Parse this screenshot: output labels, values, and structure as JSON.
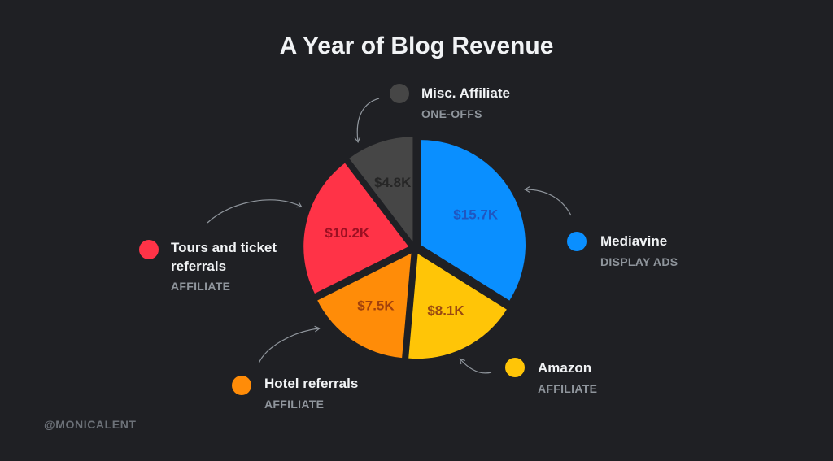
{
  "title": "A Year of Blog Revenue",
  "handle": "@MONICALENT",
  "chart_data": {
    "type": "pie",
    "title": "A Year of Blog Revenue",
    "slices": [
      {
        "name": "Mediavine",
        "category": "DISPLAY ADS",
        "value": 15.7,
        "label": "$15.7K",
        "color": "#0a8fff",
        "label_color": "#1f57c2"
      },
      {
        "name": "Amazon",
        "category": "AFFILIATE",
        "value": 8.1,
        "label": "$8.1K",
        "color": "#ffc507",
        "label_color": "#9a4a12"
      },
      {
        "name": "Hotel referrals",
        "category": "AFFILIATE",
        "value": 7.5,
        "label": "$7.5K",
        "color": "#ff8c08",
        "label_color": "#a2410c"
      },
      {
        "name": "Tours and ticket referrals",
        "category": "AFFILIATE",
        "value": 10.2,
        "label": "$10.2K",
        "color": "#ff3347",
        "label_color": "#9b0f22"
      },
      {
        "name": "Misc. Affiliate",
        "category": "ONE-OFFS",
        "value": 4.8,
        "label": "$4.8K",
        "color": "#464646",
        "label_color": "#262626"
      }
    ]
  },
  "legend": {
    "misc": {
      "name": "Misc. Affiliate",
      "category": "ONE-OFFS",
      "color": "#464646"
    },
    "mediavine": {
      "name": "Mediavine",
      "category": "DISPLAY ADS",
      "color": "#0a8fff"
    },
    "amazon": {
      "name": "Amazon",
      "category": "AFFILIATE",
      "color": "#ffc507"
    },
    "hotel": {
      "name": "Hotel referrals",
      "category": "AFFILIATE",
      "color": "#ff8c08"
    },
    "tours": {
      "name_line1": "Tours and ticket",
      "name_line2": "referrals",
      "category": "AFFILIATE",
      "color": "#ff3347"
    }
  }
}
